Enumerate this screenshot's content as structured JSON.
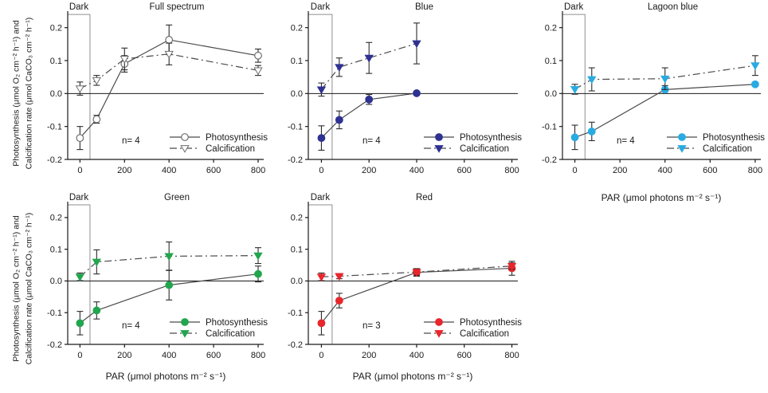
{
  "figure": {
    "y_axis_label_line1": "Photosynthesis (μmol O₂ cm⁻² h⁻¹) and",
    "y_axis_label_line2": "Calcification rate (μmol CaCO₃ cm⁻² h⁻¹)",
    "x_axis_label": "PAR (μmol photons m⁻² s⁻¹)"
  },
  "colors": {
    "axis": "#1a1a1a",
    "line": "#4a4a4a",
    "error_bar": "#2b2b2b",
    "dark_box_stroke": "#8f8f8f",
    "open_marker_stroke": "#6e6e6e",
    "open_marker_fill": "#ffffff",
    "blue": "#2E3192",
    "lagoon_blue": "#29ABE2",
    "green": "#21A64D",
    "red": "#E8262C"
  },
  "chart_data": {
    "type": "line",
    "xlabel": "PAR (μmol photons m⁻² s⁻¹)",
    "ylabel": "Photosynthesis (μmol O₂ cm⁻² h⁻¹) and Calcification rate (μmol CaCO₃ cm⁻² h⁻¹)",
    "xlim": [
      -55,
      825
    ],
    "ylim": [
      -0.2,
      0.25
    ],
    "xticks": [
      0,
      200,
      400,
      600,
      800
    ],
    "xtick_labels": [
      "0",
      "200",
      "400",
      "600",
      "800"
    ],
    "yticks": [
      0.2,
      0.1,
      0.0,
      -0.1,
      -0.2
    ],
    "ytick_labels": [
      "0.2",
      "0.1",
      "0.0",
      "-0.1",
      "-0.2"
    ],
    "grid": false,
    "legend_position": "lower right inside",
    "dark_box": {
      "label": "Dark",
      "x_max": 45,
      "y_max": 0.24
    },
    "panels": [
      {
        "id": "full_spectrum",
        "title": "Full spectrum",
        "n_label": "n= 4",
        "color": "open",
        "series": [
          {
            "name": "Photosynthesis",
            "marker": "circle",
            "line": "solid",
            "x": [
              0,
              75,
              200,
              400,
              800
            ],
            "y": [
              -0.135,
              -0.078,
              0.09,
              0.163,
              0.115
            ],
            "err": [
              0.035,
              0.012,
              0.025,
              0.045,
              0.02
            ]
          },
          {
            "name": "Calcification",
            "marker": "triangle-down",
            "line": "dashed",
            "x": [
              0,
              75,
              200,
              400,
              800
            ],
            "y": [
              0.015,
              0.04,
              0.105,
              0.12,
              0.07
            ],
            "err": [
              0.02,
              0.015,
              0.033,
              0.033,
              0.015
            ]
          }
        ]
      },
      {
        "id": "blue",
        "title": "Blue",
        "n_label": "n= 4",
        "color": "blue",
        "series": [
          {
            "name": "Photosynthesis",
            "marker": "circle",
            "line": "solid",
            "x": [
              0,
              75,
              200,
              400
            ],
            "y": [
              -0.135,
              -0.08,
              -0.018,
              0.001
            ],
            "err": [
              0.037,
              0.027,
              0.015,
              0.005
            ]
          },
          {
            "name": "Calcification",
            "marker": "triangle-down",
            "line": "dashed",
            "x": [
              0,
              75,
              200,
              400
            ],
            "y": [
              0.012,
              0.08,
              0.108,
              0.152
            ],
            "err": [
              0.02,
              0.028,
              0.047,
              0.062
            ]
          }
        ]
      },
      {
        "id": "lagoon_blue",
        "title": "Lagoon blue",
        "n_label": "n= 4",
        "color": "lagoon_blue",
        "series": [
          {
            "name": "Photosynthesis",
            "marker": "circle",
            "line": "solid",
            "x": [
              0,
              75,
              400,
              800
            ],
            "y": [
              -0.133,
              -0.115,
              0.012,
              0.028
            ],
            "err": [
              0.037,
              0.028,
              0.012,
              0.005
            ]
          },
          {
            "name": "Calcification",
            "marker": "triangle-down",
            "line": "dashed",
            "x": [
              0,
              75,
              400,
              800
            ],
            "y": [
              0.013,
              0.043,
              0.045,
              0.085
            ],
            "err": [
              0.015,
              0.035,
              0.033,
              0.03
            ]
          }
        ]
      },
      {
        "id": "green",
        "title": "Green",
        "n_label": "n= 4",
        "color": "green",
        "series": [
          {
            "name": "Photosynthesis",
            "marker": "circle",
            "line": "solid",
            "x": [
              0,
              75,
              400,
              800
            ],
            "y": [
              -0.133,
              -0.093,
              -0.013,
              0.022
            ],
            "err": [
              0.037,
              0.027,
              0.047,
              0.025
            ]
          },
          {
            "name": "Calcification",
            "marker": "triangle-down",
            "line": "dashed",
            "x": [
              0,
              75,
              400,
              800
            ],
            "y": [
              0.013,
              0.06,
              0.078,
              0.08
            ],
            "err": [
              0.012,
              0.038,
              0.045,
              0.025
            ]
          }
        ]
      },
      {
        "id": "red",
        "title": "Red",
        "n_label": "n= 3",
        "color": "red",
        "series": [
          {
            "name": "Photosynthesis",
            "marker": "circle",
            "line": "solid",
            "x": [
              0,
              75,
              400,
              800
            ],
            "y": [
              -0.133,
              -0.062,
              0.027,
              0.04
            ],
            "err": [
              0.037,
              0.023,
              0.012,
              0.022
            ]
          },
          {
            "name": "Calcification",
            "marker": "triangle-down",
            "line": "dashed",
            "x": [
              0,
              75,
              400,
              800
            ],
            "y": [
              0.013,
              0.015,
              0.028,
              0.047
            ],
            "err": [
              0.012,
              0.008,
              0.01,
              0.01
            ]
          }
        ]
      }
    ]
  }
}
